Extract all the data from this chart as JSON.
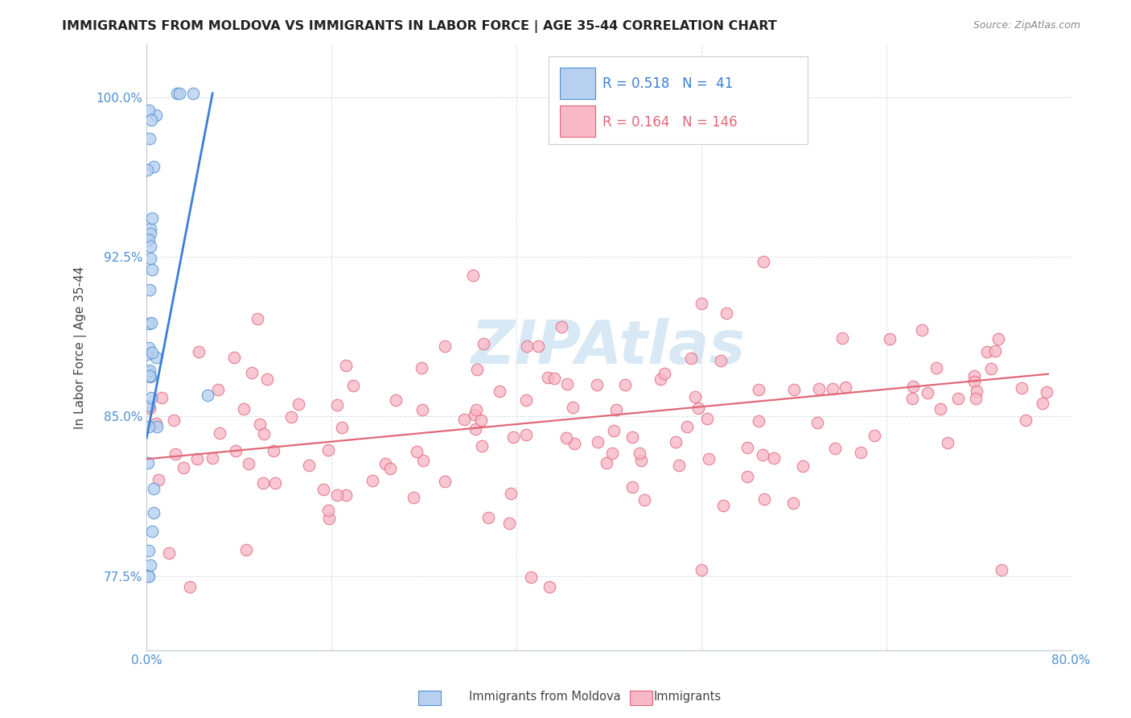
{
  "title": "IMMIGRANTS FROM MOLDOVA VS IMMIGRANTS IN LABOR FORCE | AGE 35-44 CORRELATION CHART",
  "source": "Source: ZipAtlas.com",
  "ylabel_label": "In Labor Force | Age 35-44",
  "legend_entries": [
    {
      "label": "Immigrants from Moldova",
      "color": "#b8d0f0",
      "edge": "#5090d0",
      "R": "0.518",
      "N": "41"
    },
    {
      "label": "Immigrants",
      "color": "#f8b8c8",
      "edge": "#e06878",
      "R": "0.164",
      "N": "146"
    }
  ],
  "xlim": [
    0.0,
    0.8
  ],
  "ylim": [
    0.74,
    1.025
  ],
  "yticks": [
    0.775,
    0.85,
    0.925,
    1.0
  ],
  "ytick_labels": [
    "77.5%",
    "85.0%",
    "92.5%",
    "100.0%"
  ],
  "xticks": [
    0.0,
    0.16,
    0.32,
    0.48,
    0.64,
    0.8
  ],
  "xtick_labels": [
    "0.0%",
    "",
    "",
    "",
    "",
    "80.0%"
  ],
  "blue_line_color": "#3a7fd5",
  "pink_line_color": "#e06878",
  "scatter_blue_color": "#b8d0f0",
  "scatter_pink_color": "#f8b8c8",
  "scatter_blue_edge": "#5090d0",
  "scatter_pink_edge": "#e06878",
  "watermark_color": "#d8e8f4",
  "title_fontsize": 11.5,
  "source_fontsize": 9,
  "tick_color": "#5090d0"
}
